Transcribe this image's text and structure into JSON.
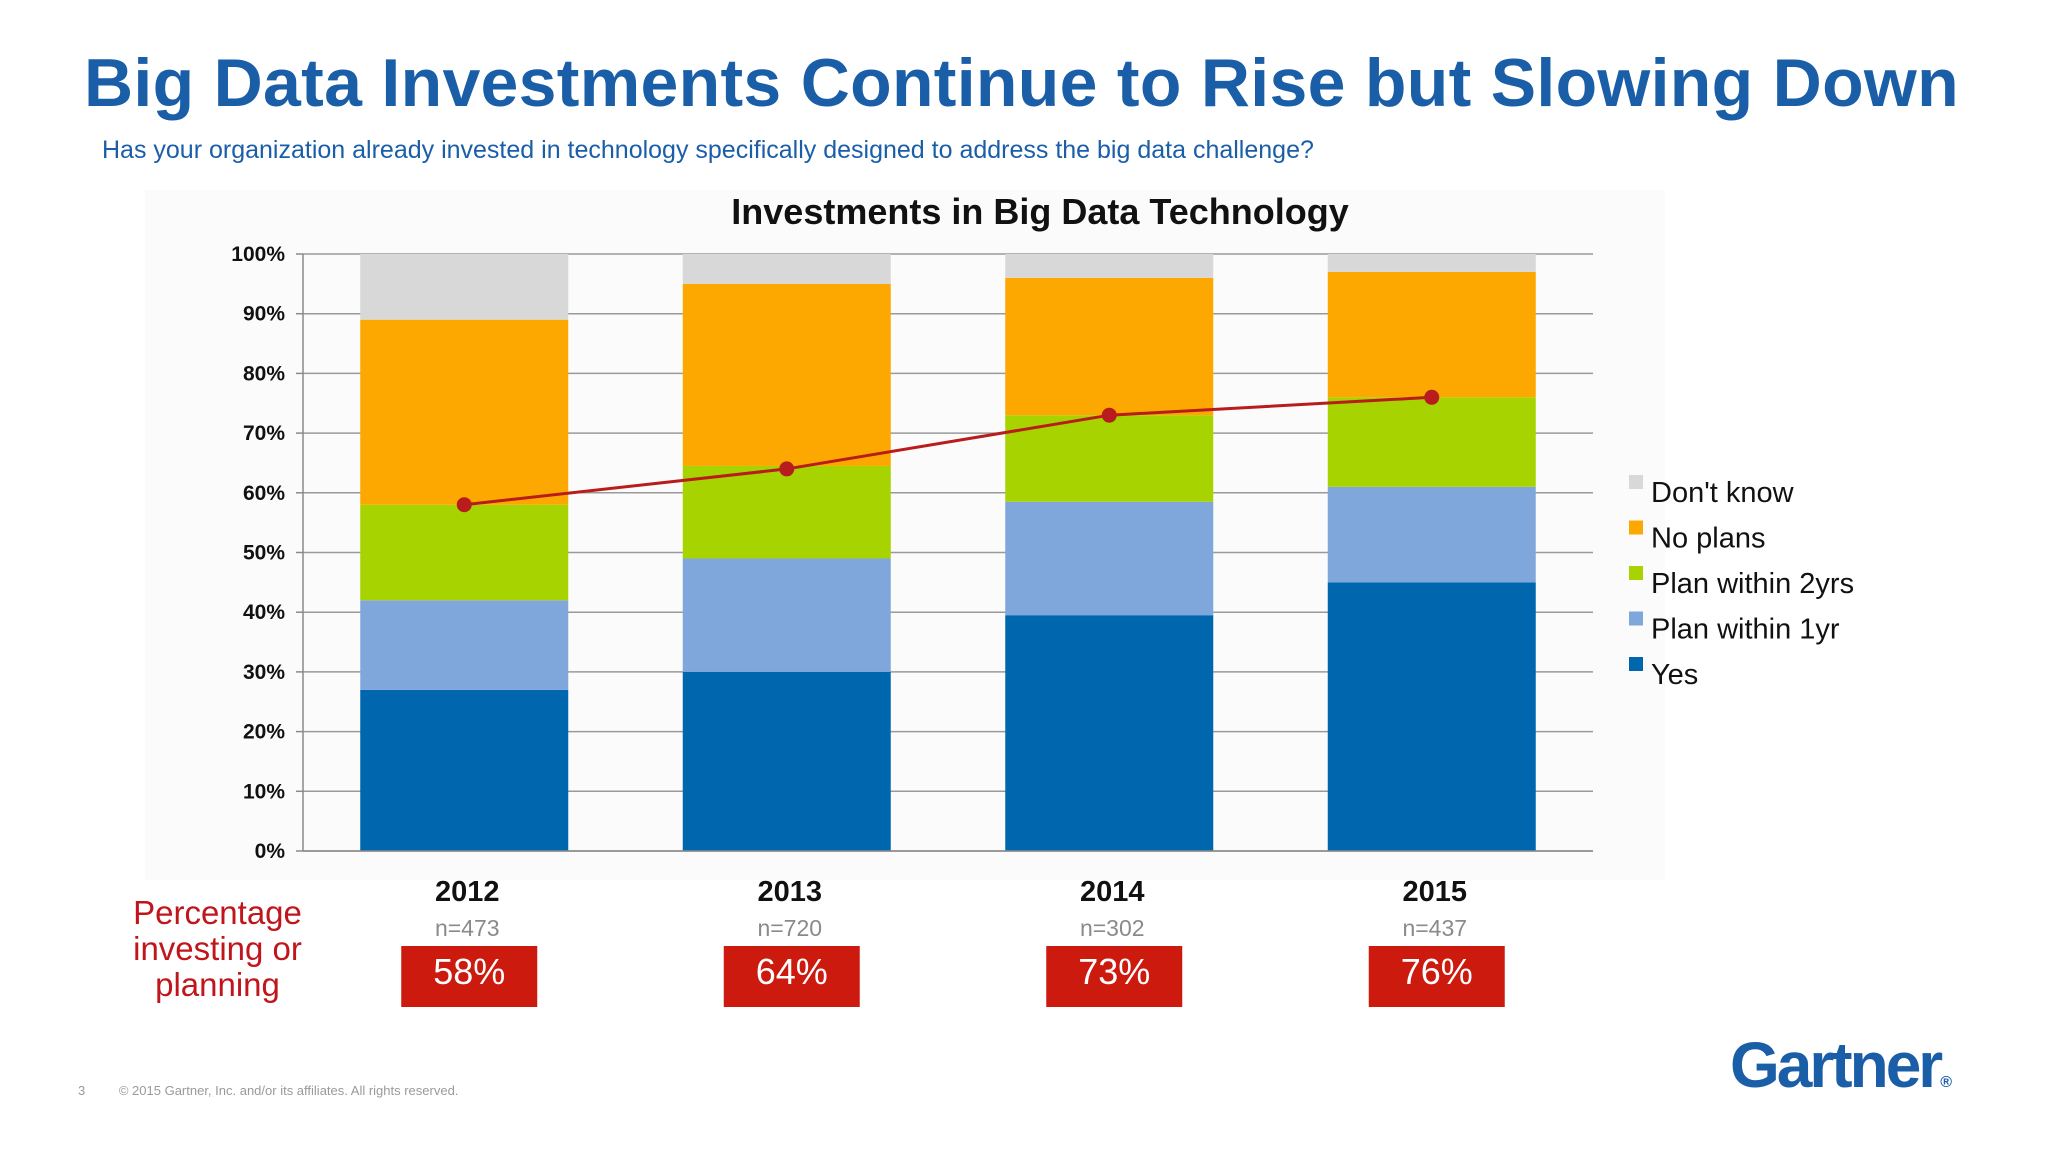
{
  "title": "Big Data Investments Continue to Rise but Slowing Down",
  "subtitle": "Has your organization already invested in technology specifically designed to address the big data challenge?",
  "side_label": "Percentage investing or planning",
  "footer": {
    "page_number": "3",
    "copyright": "© 2015 Gartner, Inc. and/or its affiliates. All rights reserved."
  },
  "logo": {
    "text": "Gartner",
    "mark": "®"
  },
  "colors": {
    "yes": "#0066ae",
    "plan_1yr": "#80a7dc",
    "plan_2yrs": "#a7d300",
    "no_plans": "#fda800",
    "dont_know": "#d8d8d8",
    "trend_line": "#b81c1c",
    "percent_box": "#cc1a0e"
  },
  "chart_data": {
    "type": "bar",
    "stacked": true,
    "title": "Investments in Big Data Technology",
    "categories": [
      "2012",
      "2013",
      "2014",
      "2015"
    ],
    "sample_sizes": [
      "n=473",
      "n=720",
      "n=302",
      "n=437"
    ],
    "ylim": [
      0,
      100
    ],
    "y_ticks": [
      "0%",
      "10%",
      "20%",
      "30%",
      "40%",
      "50%",
      "60%",
      "70%",
      "80%",
      "90%",
      "100%"
    ],
    "grid": true,
    "legend_position": "right",
    "series": [
      {
        "name": "Yes",
        "key": "yes",
        "values": [
          27,
          30,
          39.5,
          45
        ]
      },
      {
        "name": "Plan within 1yr",
        "key": "plan_1yr",
        "values": [
          15,
          19,
          19,
          16
        ]
      },
      {
        "name": "Plan within 2yrs",
        "key": "plan_2yrs",
        "values": [
          16,
          15.5,
          14.5,
          15
        ]
      },
      {
        "name": "No plans",
        "key": "no_plans",
        "values": [
          31,
          30.5,
          23,
          21
        ]
      },
      {
        "name": "Don't know",
        "key": "dont_know",
        "values": [
          11,
          5,
          4,
          3
        ]
      }
    ],
    "legend_order": [
      "Don't know",
      "No plans",
      "Plan within 2yrs",
      "Plan within 1yr",
      "Yes"
    ],
    "trend": {
      "values": [
        58,
        64,
        73,
        76
      ]
    },
    "percent_labels": [
      "58%",
      "64%",
      "73%",
      "76%"
    ]
  }
}
